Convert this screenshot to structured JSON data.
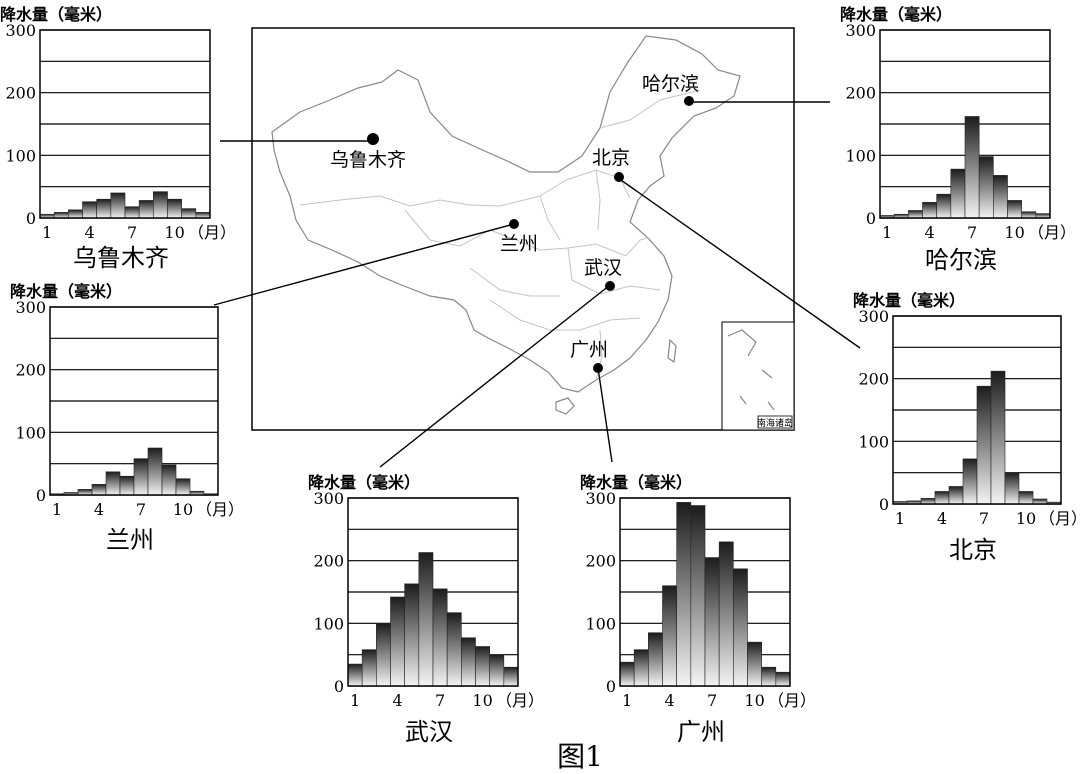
{
  "figure_label": "图1",
  "map": {
    "cities": [
      {
        "id": "urumqi",
        "name": "乌鲁木齐"
      },
      {
        "id": "harbin",
        "name": "哈尔滨"
      },
      {
        "id": "beijing",
        "name": "北京"
      },
      {
        "id": "lanzhou",
        "name": "兰州"
      },
      {
        "id": "wuhan",
        "name": "武汉"
      },
      {
        "id": "guangzhou",
        "name": "广州"
      }
    ],
    "inset_label": "南海诸岛"
  },
  "chart_data": [
    {
      "id": "urumqi",
      "type": "bar",
      "title": "乌鲁木齐",
      "ylabel": "降水量（毫米）",
      "xlabel": "（月）",
      "ylim": [
        0,
        300
      ],
      "yticks": [
        0,
        100,
        200,
        300
      ],
      "xticks": [
        "1",
        "4",
        "7",
        "10"
      ],
      "categories": [
        1,
        2,
        3,
        4,
        5,
        6,
        7,
        8,
        9,
        10,
        11,
        12
      ],
      "values": [
        6,
        9,
        13,
        26,
        30,
        40,
        18,
        28,
        42,
        30,
        15,
        9
      ]
    },
    {
      "id": "harbin",
      "type": "bar",
      "title": "哈尔滨",
      "ylabel": "降水量（毫米）",
      "xlabel": "（月）",
      "ylim": [
        0,
        300
      ],
      "yticks": [
        0,
        100,
        200,
        300
      ],
      "xticks": [
        "1",
        "4",
        "7",
        "10"
      ],
      "categories": [
        1,
        2,
        3,
        4,
        5,
        6,
        7,
        8,
        9,
        10,
        11,
        12
      ],
      "values": [
        4,
        6,
        12,
        25,
        38,
        78,
        162,
        98,
        68,
        28,
        10,
        7
      ]
    },
    {
      "id": "lanzhou",
      "type": "bar",
      "title": "兰州",
      "ylabel": "降水量（毫米）",
      "xlabel": "（月）",
      "ylim": [
        0,
        300
      ],
      "yticks": [
        0,
        100,
        200,
        300
      ],
      "xticks": [
        "1",
        "4",
        "7",
        "10"
      ],
      "categories": [
        1,
        2,
        3,
        4,
        5,
        6,
        7,
        8,
        9,
        10,
        11,
        12
      ],
      "values": [
        2,
        4,
        9,
        17,
        37,
        30,
        58,
        75,
        48,
        26,
        6,
        2
      ]
    },
    {
      "id": "beijing",
      "type": "bar",
      "title": "北京",
      "ylabel": "降水量（毫米）",
      "xlabel": "（月）",
      "ylim": [
        0,
        300
      ],
      "yticks": [
        0,
        100,
        200,
        300
      ],
      "xticks": [
        "1",
        "4",
        "7",
        "10"
      ],
      "categories": [
        1,
        2,
        3,
        4,
        5,
        6,
        7,
        8,
        9,
        10,
        11,
        12
      ],
      "values": [
        4,
        5,
        9,
        20,
        28,
        72,
        188,
        212,
        50,
        20,
        8,
        3
      ]
    },
    {
      "id": "wuhan",
      "type": "bar",
      "title": "武汉",
      "ylabel": "降水量（毫米）",
      "xlabel": "（月）",
      "ylim": [
        0,
        300
      ],
      "yticks": [
        0,
        100,
        200,
        300
      ],
      "xticks": [
        "1",
        "4",
        "7",
        "10"
      ],
      "categories": [
        1,
        2,
        3,
        4,
        5,
        6,
        7,
        8,
        9,
        10,
        11,
        12
      ],
      "values": [
        35,
        58,
        100,
        142,
        163,
        213,
        155,
        117,
        77,
        63,
        50,
        30
      ]
    },
    {
      "id": "guangzhou",
      "type": "bar",
      "title": "广州",
      "ylabel": "降水量（毫米）",
      "xlabel": "（月）",
      "ylim": [
        0,
        300
      ],
      "yticks": [
        0,
        100,
        200,
        300
      ],
      "xticks": [
        "1",
        "4",
        "7",
        "10"
      ],
      "categories": [
        1,
        2,
        3,
        4,
        5,
        6,
        7,
        8,
        9,
        10,
        11,
        12
      ],
      "values": [
        38,
        58,
        85,
        160,
        293,
        288,
        205,
        230,
        187,
        70,
        30,
        22
      ]
    }
  ]
}
